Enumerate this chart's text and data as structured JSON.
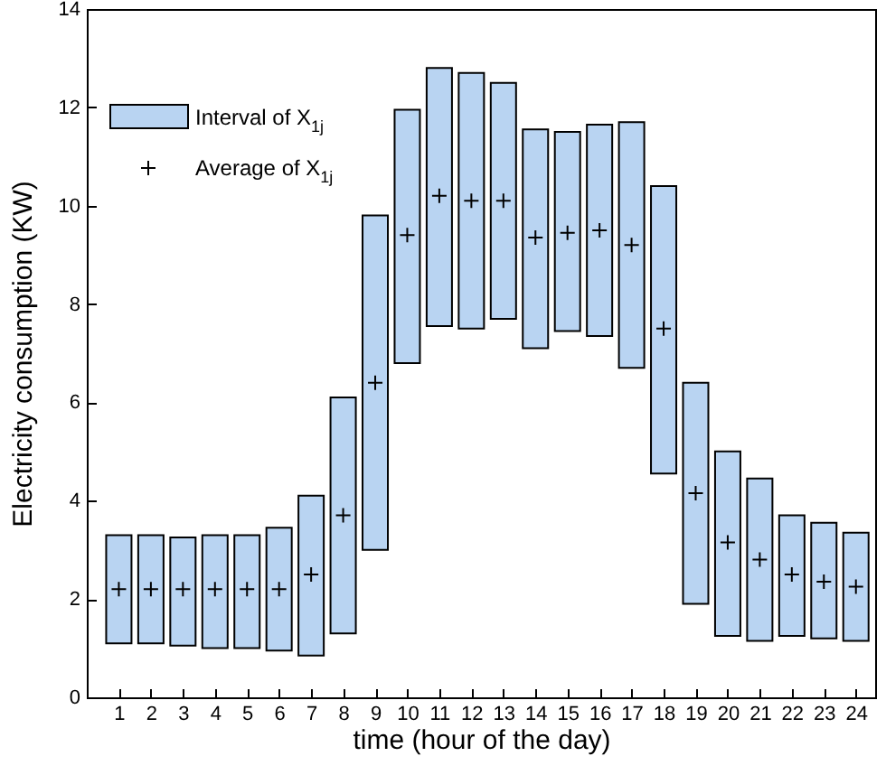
{
  "chart_data": {
    "type": "bar",
    "xlabel": "time (hour of the day)",
    "ylabel": "Electricity consumption    (KW)",
    "x": [
      1,
      2,
      3,
      4,
      5,
      6,
      7,
      8,
      9,
      10,
      11,
      12,
      13,
      14,
      15,
      16,
      17,
      18,
      19,
      20,
      21,
      22,
      23,
      24
    ],
    "xlim": [
      0,
      24.6
    ],
    "xticks": [
      1,
      2,
      3,
      4,
      5,
      6,
      7,
      8,
      9,
      10,
      11,
      12,
      13,
      14,
      15,
      16,
      17,
      18,
      19,
      20,
      21,
      22,
      23,
      24
    ],
    "ylim": [
      0,
      14
    ],
    "yticks": [
      0,
      2,
      4,
      6,
      8,
      10,
      12,
      14
    ],
    "grid": false,
    "legend": "top left",
    "series": [
      {
        "name": "Interval of X$_{1j}$",
        "base": [
          1.1,
          1.1,
          1.05,
          1.0,
          1.0,
          0.95,
          0.85,
          1.3,
          3.0,
          6.8,
          7.55,
          7.5,
          7.7,
          7.1,
          7.45,
          7.35,
          6.7,
          4.55,
          1.9,
          1.25,
          1.15,
          1.25,
          1.2,
          1.15
        ],
        "color": "#b9d4f2",
        "values": [
          2.2,
          2.2,
          2.2,
          2.3,
          2.3,
          2.5,
          3.25,
          4.8,
          6.8,
          5.15,
          5.25,
          5.2,
          4.8,
          4.45,
          4.05,
          4.3,
          5.0,
          5.85,
          4.5,
          3.75,
          3.3,
          2.45,
          2.35,
          2.2
        ]
      },
      {
        "name": "Average of X$_{1j}$",
        "type": "scatter",
        "color": "#000000",
        "marker": "cross",
        "values": [
          2.2,
          2.2,
          2.2,
          2.2,
          2.2,
          2.2,
          2.5,
          3.7,
          6.4,
          9.4,
          10.2,
          10.1,
          10.1,
          9.35,
          9.45,
          9.5,
          9.2,
          7.5,
          4.15,
          3.15,
          2.8,
          2.5,
          2.35,
          2.25
        ]
      }
    ]
  }
}
